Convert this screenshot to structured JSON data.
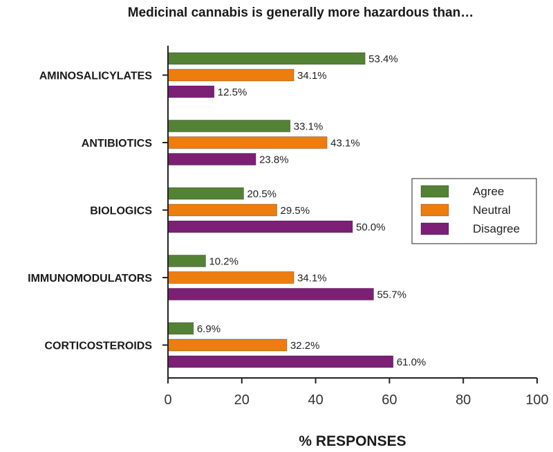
{
  "chart_data": {
    "type": "bar",
    "orientation": "horizontal",
    "title": "Medicinal cannabis is generally more hazardous than…",
    "xlabel": "% RESPONSES",
    "ylabel": "",
    "xlim": [
      0,
      100
    ],
    "xticks": [
      "0",
      "20",
      "40",
      "60",
      "80",
      "100"
    ],
    "categories": [
      "AMINOSALICYLATES",
      "ANTIBIOTICS",
      "BIOLOGICS",
      "IMMUNOMODULATORS",
      "CORTICOSTEROIDS"
    ],
    "series": [
      {
        "name": "Agree",
        "color": "#548235",
        "values": [
          53.4,
          33.1,
          20.5,
          10.2,
          6.9
        ],
        "labels": [
          "53.4%",
          "33.1%",
          "20.5%",
          "10.2%",
          "6.9%"
        ]
      },
      {
        "name": "Neutral",
        "color": "#ED7D0E",
        "values": [
          34.1,
          43.1,
          29.5,
          34.1,
          32.2
        ],
        "labels": [
          "34.1%",
          "43.1%",
          "29.5%",
          "34.1%",
          "32.2%"
        ]
      },
      {
        "name": "Disagree",
        "color": "#7B2075",
        "values": [
          12.5,
          23.8,
          50.0,
          55.7,
          61.0
        ],
        "labels": [
          "12.5%",
          "23.8%",
          "50.0%",
          "55.7%",
          "61.0%"
        ]
      }
    ],
    "legend": {
      "position": "right-middle",
      "entries": [
        "Agree",
        "Neutral",
        "Disagree"
      ]
    },
    "grid": false
  }
}
